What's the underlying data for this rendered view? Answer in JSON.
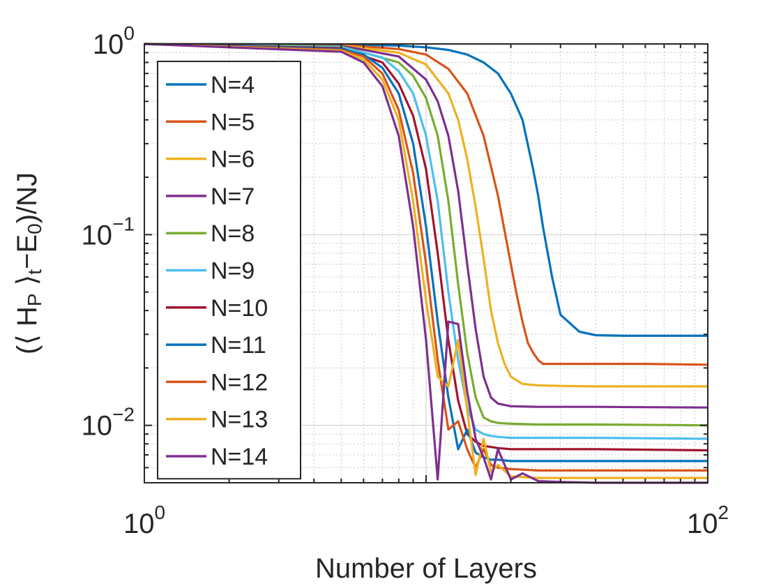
{
  "chart_data": {
    "type": "line",
    "xlabel": "Number of Layers",
    "ylabel": "(⟨ H_P ⟩_t −E_0)/NJ",
    "ylabel_parts": {
      "open": "(⟨ H",
      "sub1": "P",
      "mid": " ⟩",
      "sub2": "t",
      "minus": "−E",
      "sub3": "0",
      "close": ")/NJ"
    },
    "x_scale": "log",
    "y_scale": "log",
    "xlim": [
      1,
      100
    ],
    "ylim": [
      0.005,
      1
    ],
    "x_ticks": [
      {
        "value": 1,
        "base": "10",
        "exp": "0"
      },
      {
        "value": 100,
        "base": "10",
        "exp": "2"
      }
    ],
    "y_ticks": [
      {
        "value": 1,
        "base": "10",
        "exp": "0"
      },
      {
        "value": 0.1,
        "base": "10",
        "exp": "−1"
      },
      {
        "value": 0.01,
        "base": "10",
        "exp": "−2"
      }
    ],
    "grid": true,
    "minor_grid": true,
    "legend_position": "top-left",
    "series": [
      {
        "name": "N=4",
        "color": "#0072BD",
        "x": [
          1,
          5,
          8,
          10,
          12,
          14,
          16,
          18,
          20,
          22,
          24,
          25,
          26,
          28,
          30,
          35,
          40,
          50,
          60,
          80,
          100
        ],
        "y": [
          1.0,
          0.995,
          0.98,
          0.96,
          0.93,
          0.88,
          0.8,
          0.7,
          0.55,
          0.4,
          0.22,
          0.16,
          0.11,
          0.06,
          0.038,
          0.031,
          0.0297,
          0.0295,
          0.0295,
          0.0295,
          0.0295
        ]
      },
      {
        "name": "N=5",
        "color": "#D95319",
        "x": [
          1,
          5,
          8,
          10,
          12,
          14,
          16,
          18,
          20,
          21,
          22,
          23,
          24,
          25,
          26,
          28,
          30,
          40,
          60,
          100
        ],
        "y": [
          1.0,
          0.99,
          0.94,
          0.88,
          0.74,
          0.55,
          0.33,
          0.16,
          0.07,
          0.048,
          0.035,
          0.027,
          0.024,
          0.022,
          0.021,
          0.021,
          0.021,
          0.021,
          0.021,
          0.0208
        ]
      },
      {
        "name": "N=6",
        "color": "#EDB120",
        "x": [
          1,
          5,
          8,
          10,
          12,
          13,
          14,
          15,
          16,
          17,
          18,
          19,
          20,
          22,
          25,
          30,
          40,
          60,
          100
        ],
        "y": [
          1.0,
          0.985,
          0.9,
          0.78,
          0.55,
          0.4,
          0.25,
          0.14,
          0.075,
          0.04,
          0.027,
          0.021,
          0.018,
          0.0165,
          0.0162,
          0.0161,
          0.016,
          0.016,
          0.016
        ]
      },
      {
        "name": "N=7",
        "color": "#7E2F8E",
        "x": [
          1,
          5,
          8,
          10,
          11,
          12,
          13,
          14,
          15,
          16,
          17,
          18,
          20,
          25,
          40,
          100
        ],
        "y": [
          1.0,
          0.98,
          0.86,
          0.65,
          0.5,
          0.33,
          0.17,
          0.07,
          0.032,
          0.018,
          0.014,
          0.013,
          0.0126,
          0.0125,
          0.0125,
          0.0124
        ]
      },
      {
        "name": "N=8",
        "color": "#77AC30",
        "x": [
          1,
          5,
          8,
          9,
          10,
          11,
          12,
          13,
          14,
          15,
          16,
          17,
          18,
          20,
          25,
          40,
          100
        ],
        "y": [
          1.0,
          0.97,
          0.8,
          0.68,
          0.52,
          0.33,
          0.15,
          0.055,
          0.024,
          0.014,
          0.011,
          0.0105,
          0.0103,
          0.0102,
          0.0101,
          0.0101,
          0.01
        ]
      },
      {
        "name": "N=9",
        "color": "#4DBEEE",
        "x": [
          1,
          5,
          7,
          8,
          9,
          10,
          11,
          12,
          13,
          14,
          15,
          16,
          17,
          18,
          20,
          25,
          40,
          100
        ],
        "y": [
          1.0,
          0.96,
          0.85,
          0.72,
          0.55,
          0.33,
          0.15,
          0.05,
          0.022,
          0.0125,
          0.0095,
          0.009,
          0.0088,
          0.0087,
          0.0086,
          0.0086,
          0.0086,
          0.0085
        ]
      },
      {
        "name": "N=10",
        "color": "#A2142F",
        "x": [
          1,
          5,
          7,
          8,
          9,
          10,
          11,
          12,
          13,
          14,
          15,
          16,
          17,
          18,
          20,
          25,
          40,
          100
        ],
        "y": [
          1.0,
          0.95,
          0.8,
          0.62,
          0.42,
          0.22,
          0.08,
          0.028,
          0.0135,
          0.009,
          0.0082,
          0.0078,
          0.0077,
          0.0076,
          0.0075,
          0.0075,
          0.0075,
          0.0074
        ]
      },
      {
        "name": "N=11",
        "color": "#0072BD",
        "x": [
          1,
          5,
          6,
          7,
          8,
          9,
          10,
          11,
          12,
          13,
          14,
          15,
          16,
          17,
          18,
          20,
          25,
          40,
          100
        ],
        "y": [
          1.0,
          0.94,
          0.88,
          0.75,
          0.55,
          0.3,
          0.11,
          0.035,
          0.014,
          0.0075,
          0.0095,
          0.0072,
          0.0068,
          0.0066,
          0.0066,
          0.0065,
          0.0065,
          0.0065,
          0.0065
        ]
      },
      {
        "name": "N=12",
        "color": "#D95319",
        "x": [
          1,
          5,
          6,
          7,
          8,
          9,
          10,
          11,
          12,
          13,
          14,
          15,
          16,
          17,
          18,
          20,
          25,
          40,
          100
        ],
        "y": [
          1.0,
          0.93,
          0.86,
          0.7,
          0.45,
          0.21,
          0.07,
          0.022,
          0.0095,
          0.0105,
          0.0075,
          0.006,
          0.0075,
          0.0062,
          0.006,
          0.0059,
          0.0058,
          0.0058,
          0.0058
        ]
      },
      {
        "name": "N=13",
        "color": "#EDB120",
        "x": [
          1,
          5,
          6,
          7,
          8,
          9,
          10,
          11,
          12,
          13,
          14,
          15,
          16,
          17,
          18,
          20,
          25,
          40,
          100
        ],
        "y": [
          1.0,
          0.92,
          0.83,
          0.65,
          0.4,
          0.15,
          0.045,
          0.018,
          0.016,
          0.028,
          0.012,
          0.0055,
          0.0085,
          0.0057,
          0.0062,
          0.0054,
          0.0053,
          0.0053,
          0.0053
        ]
      },
      {
        "name": "N=14",
        "color": "#7E2F8E",
        "x": [
          1,
          5,
          6,
          7,
          8,
          9,
          10,
          11,
          12,
          13,
          14,
          15,
          16,
          17,
          18,
          20,
          22,
          25,
          30,
          40,
          100
        ],
        "y": [
          1.0,
          0.91,
          0.8,
          0.6,
          0.33,
          0.11,
          0.028,
          0.0052,
          0.035,
          0.034,
          0.015,
          0.0085,
          0.0068,
          0.0052,
          0.0075,
          0.0052,
          0.0056,
          0.0051,
          0.00505,
          0.005,
          0.005
        ]
      }
    ]
  }
}
